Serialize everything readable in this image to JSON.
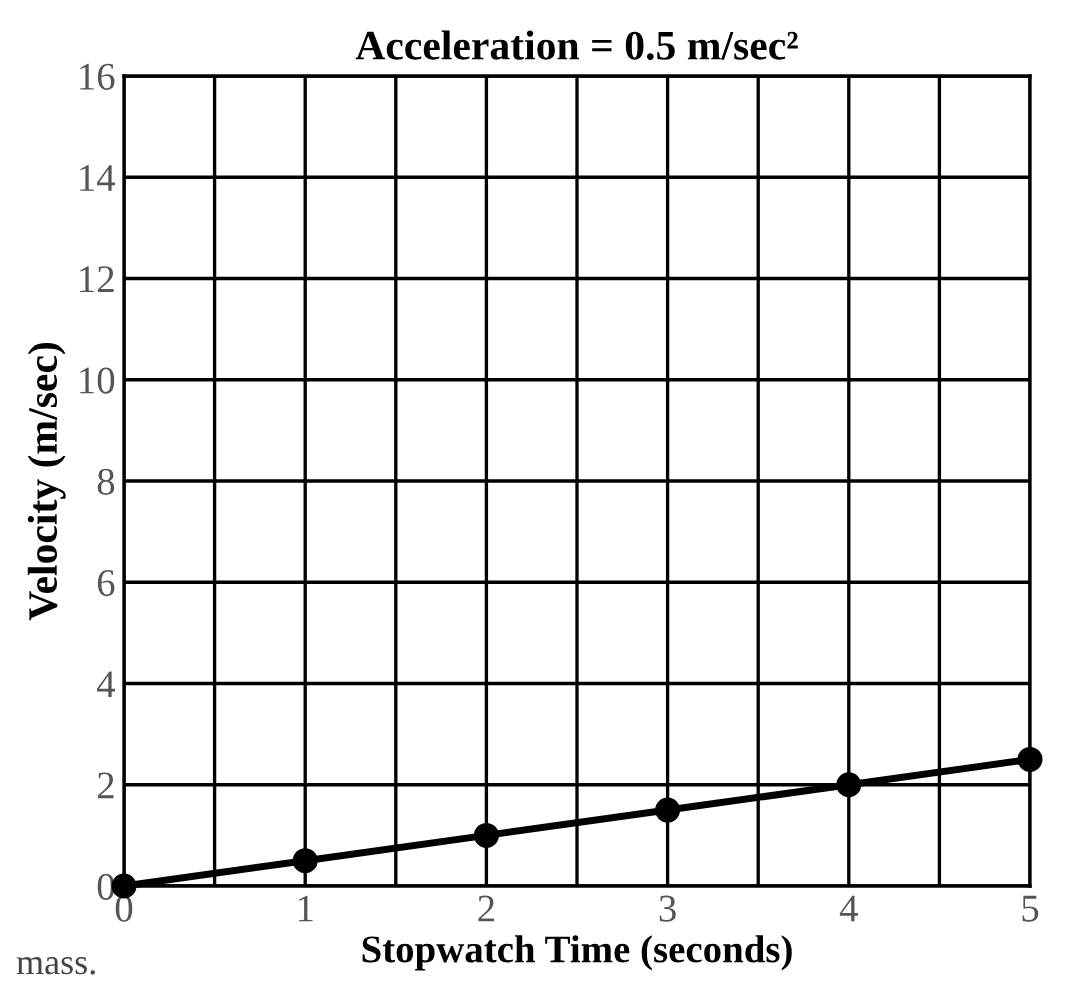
{
  "chart_data": {
    "type": "line",
    "title": "Acceleration = 0.5 m/sec²",
    "xlabel": "Stopwatch Time (seconds)",
    "ylabel": "Velocity (m/sec)",
    "x": [
      0,
      1,
      2,
      3,
      4,
      5
    ],
    "series": [
      {
        "color": "#000000",
        "values": [
          0,
          0.5,
          1,
          1.5,
          2,
          2.5
        ]
      }
    ],
    "xlim": [
      0,
      5
    ],
    "ylim": [
      0,
      16
    ],
    "xticks": [
      0,
      {
        "value": 0.5,
        "label": null
      },
      1,
      {
        "value": 1.5,
        "label": null
      },
      2,
      {
        "value": 2.5,
        "label": null
      },
      3,
      {
        "value": 3.5,
        "label": null
      },
      4,
      {
        "value": 4.5,
        "label": null
      },
      5
    ],
    "yticks": [
      0,
      2,
      4,
      6,
      8,
      10,
      12,
      14,
      16
    ],
    "grid": true,
    "marker": "circle",
    "line_style": "solid",
    "legend": false,
    "annotations": [
      "mass."
    ]
  }
}
